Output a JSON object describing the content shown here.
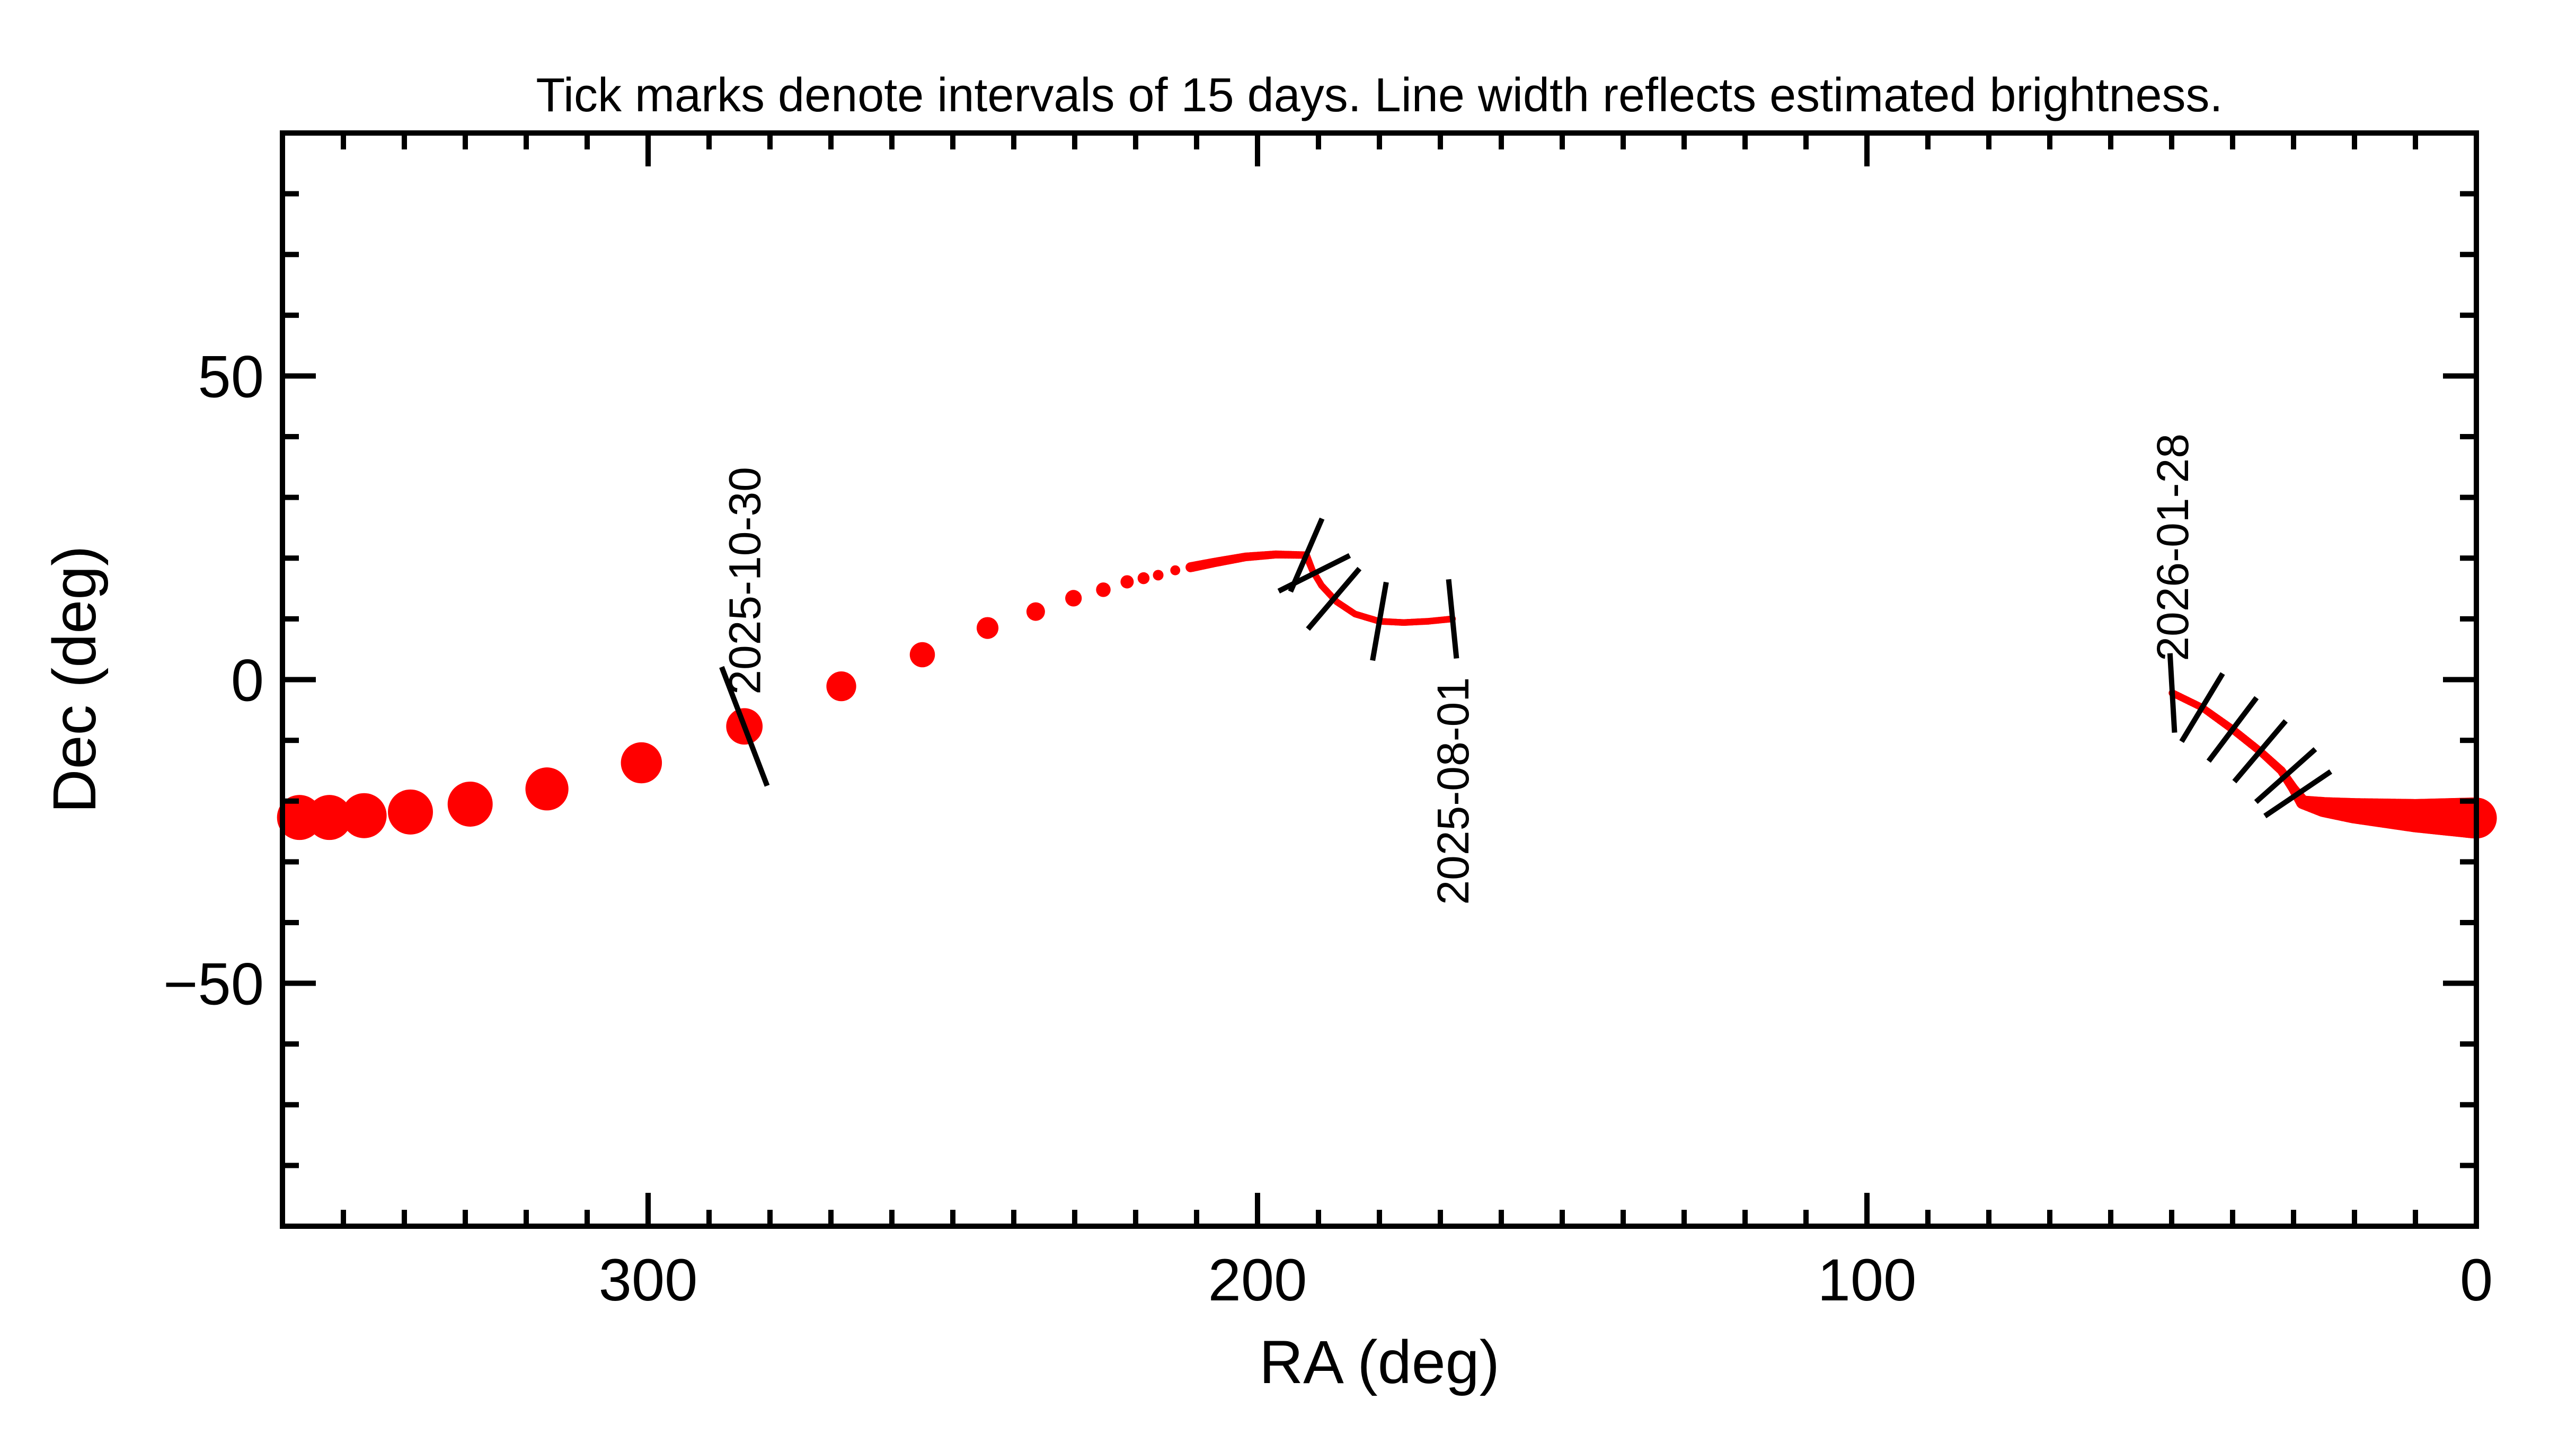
{
  "chart_data": {
    "type": "line",
    "title": "Tick marks denote intervals of 15 days.  Line width reflects estimated brightness.",
    "xlabel": "RA (deg)",
    "ylabel": "Dec (deg)",
    "xlim": [
      360,
      0
    ],
    "ylim": [
      -90,
      90
    ],
    "grid": false,
    "xticks": [
      300,
      200,
      100,
      0
    ],
    "xtick_labels": [
      "300",
      "200",
      "100",
      "0"
    ],
    "yticks": [
      50,
      0,
      -50
    ],
    "ytick_labels": [
      "50",
      "0",
      "−50"
    ],
    "minor_tick_step": 10,
    "series_color": "#ff0000",
    "tick_mark_color": "#000000",
    "segments": [
      {
        "style": "line",
        "points": [
          [
            168,
            10,
            1
          ],
          [
            172,
            9.6,
            1
          ],
          [
            176,
            9.4,
            1
          ],
          [
            180,
            9.6,
            1
          ],
          [
            184,
            10.8,
            1
          ],
          [
            187,
            12.8,
            1
          ],
          [
            189.5,
            15.5,
            1
          ],
          [
            191,
            18,
            1
          ],
          [
            192,
            20.5,
            1.1
          ],
          [
            197,
            20.6,
            1.2
          ],
          [
            202,
            20.2,
            1.3
          ],
          [
            207,
            19.3,
            1.4
          ],
          [
            211,
            18.5,
            1.5
          ]
        ]
      },
      {
        "style": "dots",
        "points": [
          [
            213.5,
            18.0,
            1.5
          ],
          [
            216.3,
            17.2,
            1.6
          ],
          [
            218.7,
            16.7,
            1.8
          ],
          [
            221.4,
            16.1,
            2.0
          ],
          [
            225.3,
            14.8,
            2.2
          ],
          [
            230.2,
            13.4,
            2.5
          ],
          [
            236.4,
            11.2,
            2.8
          ],
          [
            244.3,
            8.5,
            3.3
          ],
          [
            255.0,
            4.1,
            3.8
          ],
          [
            268.3,
            -1.1,
            4.5
          ],
          [
            284.2,
            -7.7,
            5.5
          ],
          [
            301.1,
            -13.7,
            6.2
          ],
          [
            316.6,
            -18.0,
            6.5
          ],
          [
            329.2,
            -20.5,
            6.8
          ],
          [
            339.0,
            -21.8,
            6.8
          ],
          [
            346.6,
            -22.4,
            6.8
          ],
          [
            352.3,
            -22.7,
            6.8
          ],
          [
            357.2,
            -22.7,
            6.8
          ]
        ]
      },
      {
        "style": "line",
        "points": [
          [
            49.9,
            -2.2,
            1.1
          ],
          [
            45,
            -4.6,
            1.1
          ],
          [
            40,
            -8.2,
            1.2
          ],
          [
            35.5,
            -11.8,
            1.2
          ],
          [
            32,
            -15,
            1.3
          ],
          [
            30,
            -18,
            1.5
          ],
          [
            28.5,
            -20.2,
            2.0
          ],
          [
            25,
            -21.0,
            3.0
          ],
          [
            20,
            -21.6,
            3.8
          ],
          [
            15,
            -22.0,
            4.4
          ],
          [
            10,
            -22.4,
            5.0
          ],
          [
            5,
            -22.6,
            5.6
          ],
          [
            0,
            -22.8,
            6.2
          ]
        ]
      }
    ],
    "tick_marks": [
      [
        168,
        10
      ],
      [
        180,
        9.6
      ],
      [
        187.5,
        13.3
      ],
      [
        190.7,
        17.5
      ],
      [
        192,
        20.5
      ],
      [
        284.2,
        -7.7
      ],
      [
        49.9,
        -2.2
      ],
      [
        45,
        -4.6
      ],
      [
        40,
        -8.2
      ],
      [
        35.5,
        -11.8
      ],
      [
        31.3,
        -15.8
      ],
      [
        29.3,
        -18.8
      ]
    ],
    "date_labels": [
      {
        "text": "2025-08-01",
        "ra": 168,
        "dec": 10,
        "side": "below"
      },
      {
        "text": "2025-10-30",
        "ra": 284.2,
        "dec": -7.7,
        "side": "above"
      },
      {
        "text": "2026-01-28",
        "ra": 49.9,
        "dec": -2.2,
        "side": "above"
      }
    ]
  }
}
